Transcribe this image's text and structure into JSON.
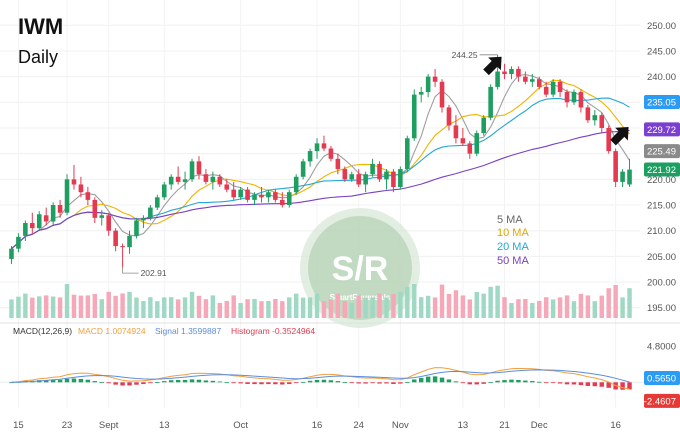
{
  "chart_data": {
    "type": "candlestick",
    "title": "IWM",
    "subtitle": "Daily",
    "ylim": [
      193,
      252
    ],
    "price_ticks": [
      195.0,
      200.0,
      205.0,
      210.0,
      215.0,
      220.0,
      225.0,
      230.0,
      235.0,
      240.0,
      245.0,
      250.0
    ],
    "x_tick_labels": [
      {
        "i": 1,
        "label": "15"
      },
      {
        "i": 8,
        "label": "23"
      },
      {
        "i": 14,
        "label": "Sept"
      },
      {
        "i": 22,
        "label": "13"
      },
      {
        "i": 33,
        "label": "Oct"
      },
      {
        "i": 44,
        "label": "16"
      },
      {
        "i": 50,
        "label": "24"
      },
      {
        "i": 56,
        "label": "Nov"
      },
      {
        "i": 65,
        "label": "13"
      },
      {
        "i": 71,
        "label": "21"
      },
      {
        "i": 76,
        "label": "Dec"
      },
      {
        "i": 87,
        "label": "16"
      }
    ],
    "candles": [
      {
        "o": 204.5,
        "h": 207.0,
        "l": 203.5,
        "c": 206.5
      },
      {
        "o": 206.5,
        "h": 209.5,
        "l": 205.8,
        "c": 208.8
      },
      {
        "o": 209.0,
        "h": 212.0,
        "l": 208.0,
        "c": 211.5
      },
      {
        "o": 211.5,
        "h": 213.5,
        "l": 209.5,
        "c": 210.5
      },
      {
        "o": 210.5,
        "h": 213.8,
        "l": 210.0,
        "c": 213.2
      },
      {
        "o": 213.0,
        "h": 214.5,
        "l": 211.0,
        "c": 211.8
      },
      {
        "o": 211.8,
        "h": 215.5,
        "l": 211.2,
        "c": 215.0
      },
      {
        "o": 215.0,
        "h": 216.0,
        "l": 212.5,
        "c": 213.5
      },
      {
        "o": 213.5,
        "h": 221.0,
        "l": 213.0,
        "c": 220.0
      },
      {
        "o": 220.0,
        "h": 222.8,
        "l": 218.0,
        "c": 219.0
      },
      {
        "o": 219.0,
        "h": 220.5,
        "l": 216.5,
        "c": 217.5
      },
      {
        "o": 217.5,
        "h": 218.5,
        "l": 215.0,
        "c": 216.0
      },
      {
        "o": 216.0,
        "h": 216.5,
        "l": 211.5,
        "c": 212.5
      },
      {
        "o": 212.5,
        "h": 214.0,
        "l": 211.0,
        "c": 213.0
      },
      {
        "o": 213.0,
        "h": 213.5,
        "l": 209.0,
        "c": 210.0
      },
      {
        "o": 210.0,
        "h": 210.5,
        "l": 206.0,
        "c": 207.0
      },
      {
        "o": 207.0,
        "h": 207.5,
        "l": 202.9,
        "c": 206.8
      },
      {
        "o": 206.8,
        "h": 210.0,
        "l": 205.5,
        "c": 209.0
      },
      {
        "o": 209.0,
        "h": 212.5,
        "l": 208.5,
        "c": 212.0
      },
      {
        "o": 212.0,
        "h": 213.0,
        "l": 210.5,
        "c": 212.5
      },
      {
        "o": 212.5,
        "h": 215.0,
        "l": 212.0,
        "c": 214.5
      },
      {
        "o": 214.5,
        "h": 217.0,
        "l": 214.0,
        "c": 216.5
      },
      {
        "o": 216.5,
        "h": 219.5,
        "l": 216.0,
        "c": 219.0
      },
      {
        "o": 219.0,
        "h": 221.0,
        "l": 218.0,
        "c": 220.5
      },
      {
        "o": 220.5,
        "h": 222.5,
        "l": 219.0,
        "c": 219.5
      },
      {
        "o": 219.5,
        "h": 221.5,
        "l": 218.0,
        "c": 220.0
      },
      {
        "o": 220.0,
        "h": 224.0,
        "l": 219.5,
        "c": 223.5
      },
      {
        "o": 223.5,
        "h": 224.5,
        "l": 220.0,
        "c": 221.0
      },
      {
        "o": 221.0,
        "h": 222.0,
        "l": 219.0,
        "c": 219.5
      },
      {
        "o": 219.5,
        "h": 221.5,
        "l": 218.0,
        "c": 220.5
      },
      {
        "o": 220.5,
        "h": 221.0,
        "l": 218.5,
        "c": 219.0
      },
      {
        "o": 219.0,
        "h": 220.0,
        "l": 217.5,
        "c": 218.0
      },
      {
        "o": 218.0,
        "h": 219.5,
        "l": 216.0,
        "c": 216.5
      },
      {
        "o": 216.5,
        "h": 218.5,
        "l": 216.0,
        "c": 218.0
      },
      {
        "o": 218.0,
        "h": 218.5,
        "l": 215.5,
        "c": 216.0
      },
      {
        "o": 216.0,
        "h": 217.5,
        "l": 215.0,
        "c": 217.0
      },
      {
        "o": 217.0,
        "h": 218.5,
        "l": 215.5,
        "c": 216.5
      },
      {
        "o": 216.5,
        "h": 218.0,
        "l": 215.5,
        "c": 217.5
      },
      {
        "o": 217.5,
        "h": 218.0,
        "l": 215.5,
        "c": 216.0
      },
      {
        "o": 216.0,
        "h": 217.5,
        "l": 214.5,
        "c": 215.0
      },
      {
        "o": 215.0,
        "h": 218.0,
        "l": 214.5,
        "c": 217.5
      },
      {
        "o": 217.5,
        "h": 221.0,
        "l": 217.0,
        "c": 220.5
      },
      {
        "o": 220.5,
        "h": 224.0,
        "l": 220.0,
        "c": 223.5
      },
      {
        "o": 223.5,
        "h": 226.0,
        "l": 222.5,
        "c": 225.5
      },
      {
        "o": 225.5,
        "h": 228.0,
        "l": 224.0,
        "c": 227.0
      },
      {
        "o": 227.0,
        "h": 228.5,
        "l": 225.5,
        "c": 226.0
      },
      {
        "o": 226.0,
        "h": 226.5,
        "l": 223.5,
        "c": 224.0
      },
      {
        "o": 224.0,
        "h": 225.0,
        "l": 221.0,
        "c": 222.0
      },
      {
        "o": 222.0,
        "h": 222.5,
        "l": 219.5,
        "c": 220.0
      },
      {
        "o": 220.0,
        "h": 221.5,
        "l": 219.5,
        "c": 221.0
      },
      {
        "o": 221.0,
        "h": 222.0,
        "l": 218.5,
        "c": 219.0
      },
      {
        "o": 219.0,
        "h": 221.5,
        "l": 217.5,
        "c": 221.0
      },
      {
        "o": 221.0,
        "h": 224.0,
        "l": 220.5,
        "c": 223.0
      },
      {
        "o": 223.0,
        "h": 223.5,
        "l": 219.5,
        "c": 220.0
      },
      {
        "o": 220.0,
        "h": 222.0,
        "l": 218.0,
        "c": 221.5
      },
      {
        "o": 221.5,
        "h": 222.0,
        "l": 217.5,
        "c": 218.5
      },
      {
        "o": 218.5,
        "h": 222.5,
        "l": 218.0,
        "c": 222.0
      },
      {
        "o": 222.0,
        "h": 228.5,
        "l": 221.5,
        "c": 228.0
      },
      {
        "o": 228.0,
        "h": 237.5,
        "l": 227.5,
        "c": 236.5
      },
      {
        "o": 236.5,
        "h": 238.0,
        "l": 235.0,
        "c": 237.0
      },
      {
        "o": 237.0,
        "h": 240.5,
        "l": 236.0,
        "c": 240.0
      },
      {
        "o": 240.0,
        "h": 241.5,
        "l": 238.0,
        "c": 239.0
      },
      {
        "o": 239.0,
        "h": 239.5,
        "l": 233.0,
        "c": 234.0
      },
      {
        "o": 234.0,
        "h": 234.5,
        "l": 229.5,
        "c": 230.5
      },
      {
        "o": 230.5,
        "h": 232.5,
        "l": 227.0,
        "c": 228.0
      },
      {
        "o": 228.0,
        "h": 230.0,
        "l": 226.5,
        "c": 227.0
      },
      {
        "o": 227.0,
        "h": 227.5,
        "l": 224.0,
        "c": 225.0
      },
      {
        "o": 225.0,
        "h": 229.5,
        "l": 224.5,
        "c": 229.0
      },
      {
        "o": 229.0,
        "h": 232.5,
        "l": 228.5,
        "c": 232.0
      },
      {
        "o": 232.0,
        "h": 238.5,
        "l": 231.5,
        "c": 238.0
      },
      {
        "o": 238.0,
        "h": 244.25,
        "l": 237.5,
        "c": 241.0
      },
      {
        "o": 241.0,
        "h": 242.5,
        "l": 239.5,
        "c": 240.5
      },
      {
        "o": 240.5,
        "h": 242.0,
        "l": 239.5,
        "c": 241.5
      },
      {
        "o": 241.5,
        "h": 242.0,
        "l": 239.0,
        "c": 240.0
      },
      {
        "o": 240.0,
        "h": 241.0,
        "l": 238.5,
        "c": 239.0
      },
      {
        "o": 239.0,
        "h": 240.5,
        "l": 238.0,
        "c": 239.5
      },
      {
        "o": 239.5,
        "h": 240.0,
        "l": 237.5,
        "c": 238.0
      },
      {
        "o": 238.0,
        "h": 239.0,
        "l": 236.0,
        "c": 236.5
      },
      {
        "o": 236.5,
        "h": 239.5,
        "l": 236.0,
        "c": 239.0
      },
      {
        "o": 239.0,
        "h": 239.5,
        "l": 236.0,
        "c": 237.0
      },
      {
        "o": 237.0,
        "h": 237.5,
        "l": 234.0,
        "c": 235.0
      },
      {
        "o": 235.0,
        "h": 237.5,
        "l": 234.5,
        "c": 237.0
      },
      {
        "o": 237.0,
        "h": 237.5,
        "l": 233.0,
        "c": 234.0
      },
      {
        "o": 234.0,
        "h": 234.5,
        "l": 231.0,
        "c": 231.5
      },
      {
        "o": 231.5,
        "h": 233.5,
        "l": 230.5,
        "c": 232.5
      },
      {
        "o": 232.5,
        "h": 233.0,
        "l": 229.0,
        "c": 230.0
      },
      {
        "o": 230.0,
        "h": 230.5,
        "l": 225.0,
        "c": 225.5
      },
      {
        "o": 225.5,
        "h": 226.0,
        "l": 218.5,
        "c": 219.5
      },
      {
        "o": 219.5,
        "h": 222.0,
        "l": 218.5,
        "c": 221.5
      },
      {
        "o": 219.0,
        "h": 224.0,
        "l": 218.5,
        "c": 221.9
      }
    ],
    "moving_averages": [
      {
        "name": "5 MA",
        "period": 5,
        "color": "#9e9e9e"
      },
      {
        "name": "10 MA",
        "period": 10,
        "color": "#f0b400"
      },
      {
        "name": "20 MA",
        "period": 20,
        "color": "#26a6d6"
      },
      {
        "name": "50 MA",
        "period": 50,
        "color": "#7b3fbf"
      }
    ],
    "price_badges": [
      {
        "value": "235.05",
        "price": 235.05,
        "color": "#2b9bf4"
      },
      {
        "value": "229.72",
        "price": 229.72,
        "color": "#7b3fd0"
      },
      {
        "value": "225.49",
        "price": 225.49,
        "color": "#8a8a8a"
      },
      {
        "value": "221.92",
        "price": 221.92,
        "color": "#1e9e61"
      }
    ],
    "annotations": [
      {
        "label": "244.25",
        "candle": 70,
        "price": 244.25
      },
      {
        "label": "202.91",
        "candle": 16,
        "price": 202.91
      }
    ],
    "macd": {
      "label": "MACD(12,26,9)",
      "macd_label": "MACD 1.0074924",
      "signal_label": "Signal 1.3599887",
      "hist_label": "Histogram -0.3524964",
      "ylim": [
        -3.4,
        5.6
      ],
      "ticks": [
        {
          "v": 4.8,
          "label": "4.8000"
        }
      ],
      "badges": [
        {
          "value": "0.5650",
          "v": 0.565,
          "color": "#2b9bf4"
        },
        {
          "value": "-2.4607",
          "v": -2.4607,
          "color": "#e53935"
        }
      ]
    }
  },
  "watermark": {
    "text": "S/R",
    "subtext": "SmartReversals"
  },
  "colors": {
    "up": "#1e9e61",
    "down": "#e53950",
    "vol_up": "#9fd9c3",
    "vol_down": "#f6a8b8",
    "macd": "#f0a040",
    "signal": "#5b8dde",
    "hist_up": "#1e9e61",
    "hist_down": "#e53950"
  }
}
